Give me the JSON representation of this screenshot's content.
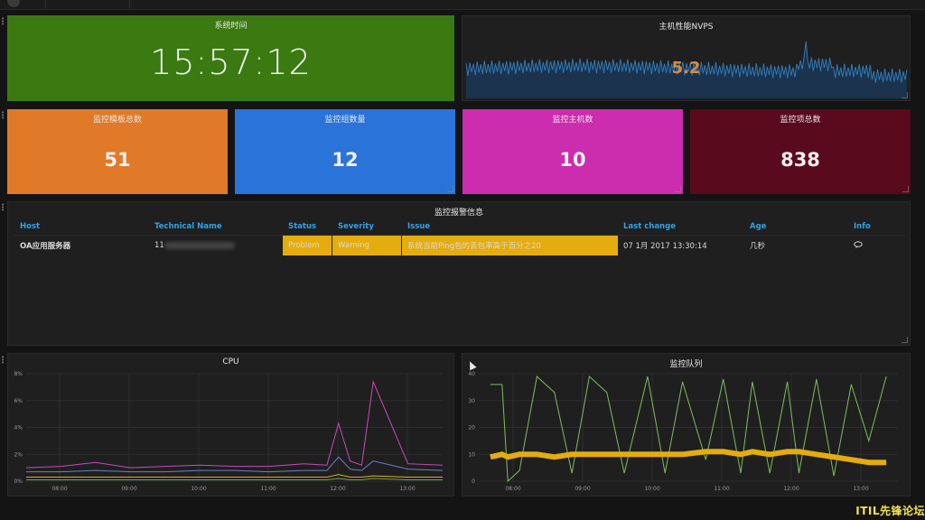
{
  "colors": {
    "time_panel": "#3a7a11",
    "templates_panel": "#e07a28",
    "groups_panel": "#2a73d8",
    "hosts_panel": "#cc2cae",
    "items_panel": "#590a1c",
    "warning": "#e5ac0e",
    "table_header": "#33a2e5",
    "nvps_line": "#2d7ab8",
    "cpu_series": [
      "#c94bb8",
      "#6b82c4",
      "#e5ac0e",
      "#6aa84f",
      "#5a5a5a"
    ],
    "queue_series": [
      "#7bbf5a",
      "#e5ac0e"
    ]
  },
  "time_panel": {
    "title": "系统时间",
    "value": "15:57:12"
  },
  "nvps_panel": {
    "title": "主机性能NVPS",
    "value": "5.2"
  },
  "stats": {
    "templates": {
      "title": "监控模板总数",
      "value": "51"
    },
    "groups": {
      "title": "监控组数量",
      "value": "12"
    },
    "hosts": {
      "title": "监控主机数",
      "value": "10"
    },
    "items": {
      "title": "监控项总数",
      "value": "838"
    }
  },
  "alerts": {
    "title": "监控报警信息",
    "columns": [
      "Host",
      "Technical Name",
      "Status",
      "Severity",
      "Issue",
      "Last change",
      "Age",
      "Info"
    ],
    "rows": [
      {
        "host": "OA应用服务器",
        "technical_name": "11",
        "status": "Problem",
        "severity": "Warning",
        "issue": "系统当前Ping包的丢包率高于百分之20",
        "last_change": "07 1月 2017 13:30:14",
        "age": "几秒",
        "info_icon": "speech-bubble-icon"
      }
    ]
  },
  "cpu_chart": {
    "title": "CPU",
    "y_ticks": [
      "8%",
      "6%",
      "4%",
      "2%",
      "0%"
    ],
    "x_ticks": [
      "08:00",
      "09:00",
      "10:00",
      "11:00",
      "12:00",
      "13:00"
    ]
  },
  "queue_chart": {
    "title": "监控队列",
    "y_ticks": [
      "40",
      "30",
      "20",
      "10",
      "0"
    ],
    "x_ticks": [
      "08:00",
      "09:00",
      "10:00",
      "11:00",
      "12:00",
      "13:00"
    ]
  },
  "chart_data": [
    {
      "type": "line",
      "title": "CPU",
      "x": [
        "07:30",
        "08:00",
        "08:30",
        "09:00",
        "09:30",
        "10:00",
        "10:30",
        "11:00",
        "11:30",
        "11:50",
        "12:00",
        "12:10",
        "12:20",
        "12:30",
        "13:00",
        "13:30"
      ],
      "ylim": [
        0,
        8
      ],
      "grid": true,
      "series": [
        {
          "values": [
            1.0,
            1.1,
            1.4,
            1.0,
            1.1,
            1.2,
            1.1,
            1.1,
            1.3,
            1.2,
            4.3,
            1.5,
            1.2,
            7.4,
            1.3,
            1.2
          ]
        },
        {
          "values": [
            0.7,
            0.7,
            0.8,
            0.7,
            0.7,
            0.8,
            0.8,
            0.7,
            0.8,
            0.8,
            1.8,
            0.9,
            0.8,
            1.5,
            0.9,
            0.8
          ]
        },
        {
          "values": [
            0.3,
            0.3,
            0.3,
            0.3,
            0.3,
            0.3,
            0.3,
            0.3,
            0.3,
            0.3,
            0.5,
            0.3,
            0.3,
            0.4,
            0.3,
            0.3
          ]
        },
        {
          "values": [
            0.1,
            0.1,
            0.1,
            0.1,
            0.1,
            0.1,
            0.1,
            0.1,
            0.1,
            0.1,
            0.2,
            0.1,
            0.1,
            0.2,
            0.1,
            0.1
          ]
        }
      ]
    },
    {
      "type": "line",
      "title": "监控队列",
      "x": [
        "07:45",
        "07:55",
        "08:00",
        "08:10",
        "08:25",
        "08:40",
        "08:55",
        "09:10",
        "09:25",
        "09:40",
        "10:00",
        "10:15",
        "10:30",
        "10:50",
        "11:05",
        "11:20",
        "11:30",
        "11:45",
        "12:00",
        "12:10",
        "12:25",
        "12:40",
        "12:55",
        "13:10",
        "13:25"
      ],
      "ylim": [
        0,
        40
      ],
      "grid": true,
      "series": [
        {
          "values": [
            36,
            36,
            0,
            4,
            39,
            33,
            3,
            39,
            33,
            3,
            39,
            3,
            37,
            8,
            38,
            3,
            37,
            3,
            37,
            3,
            38,
            2,
            36,
            15,
            39
          ]
        },
        {
          "values": [
            9,
            10,
            9,
            10,
            10,
            9,
            10,
            10,
            10,
            10,
            10,
            10,
            10,
            11,
            11,
            10,
            11,
            10,
            11,
            11,
            10,
            9,
            8,
            7,
            7
          ]
        }
      ]
    }
  ],
  "watermark": "ITIL先锋论坛"
}
